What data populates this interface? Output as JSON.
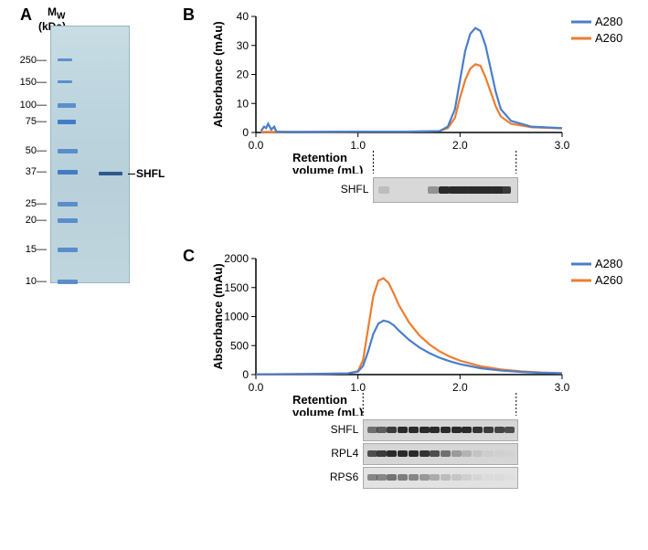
{
  "panelA": {
    "label": "A",
    "mw_header_line1": "M",
    "mw_header_sub": "W",
    "mw_header_line2": "(kDa)",
    "ticks": [
      "250",
      "150",
      "100",
      "75",
      "50",
      "37",
      "25",
      "20",
      "15",
      "10"
    ],
    "tick_positions": [
      38,
      62,
      87,
      105,
      137,
      160,
      195,
      213,
      245,
      280
    ],
    "marker_color": "#3a77c4",
    "sample_label": "SHFL",
    "sample_band_y": 162
  },
  "panelB": {
    "label": "B",
    "x_label": "Retention",
    "x_label2": "volume (mL)",
    "y_label": "Absorbance (mAu)",
    "x_ticks": [
      0.0,
      1.0,
      2.0,
      3.0
    ],
    "y_ticks": [
      0,
      10,
      20,
      30,
      40
    ],
    "ylim": [
      0,
      40
    ],
    "xlim": [
      0,
      3.0
    ],
    "legend": [
      {
        "label": "A280",
        "color": "#4a7ecb"
      },
      {
        "label": "A260",
        "color": "#ed7d31"
      }
    ],
    "series_A280": {
      "color": "#4a7ecb",
      "points": [
        [
          0.05,
          0.5
        ],
        [
          0.08,
          2
        ],
        [
          0.1,
          1.5
        ],
        [
          0.12,
          3
        ],
        [
          0.15,
          1
        ],
        [
          0.18,
          2
        ],
        [
          0.2,
          0.3
        ],
        [
          0.3,
          0.2
        ],
        [
          0.5,
          0.2
        ],
        [
          1.0,
          0.3
        ],
        [
          1.5,
          0.3
        ],
        [
          1.8,
          0.5
        ],
        [
          1.88,
          2
        ],
        [
          1.95,
          8
        ],
        [
          2.0,
          18
        ],
        [
          2.05,
          28
        ],
        [
          2.1,
          34
        ],
        [
          2.15,
          36
        ],
        [
          2.2,
          35
        ],
        [
          2.25,
          30
        ],
        [
          2.3,
          22
        ],
        [
          2.35,
          14
        ],
        [
          2.4,
          8
        ],
        [
          2.5,
          4
        ],
        [
          2.7,
          2
        ],
        [
          3.0,
          1.5
        ]
      ]
    },
    "series_A260": {
      "color": "#ed7d31",
      "points": [
        [
          0.05,
          0.2
        ],
        [
          0.5,
          0.2
        ],
        [
          1.0,
          0.3
        ],
        [
          1.5,
          0.3
        ],
        [
          1.8,
          0.5
        ],
        [
          1.88,
          1.5
        ],
        [
          1.95,
          5
        ],
        [
          2.0,
          12
        ],
        [
          2.05,
          18
        ],
        [
          2.1,
          22
        ],
        [
          2.15,
          23.5
        ],
        [
          2.2,
          23
        ],
        [
          2.25,
          19
        ],
        [
          2.3,
          14
        ],
        [
          2.35,
          9
        ],
        [
          2.4,
          5.5
        ],
        [
          2.5,
          3
        ],
        [
          2.7,
          1.8
        ],
        [
          3.0,
          1.4
        ]
      ]
    },
    "blot_label": "SHFL",
    "blot_bands_x": [
      0.07,
      0.41,
      0.49,
      0.56,
      0.62,
      0.68,
      0.74,
      0.8,
      0.86,
      0.92
    ],
    "blot_band_intensity": [
      0.15,
      0.4,
      1,
      1,
      1,
      1,
      1,
      1,
      1,
      0.9
    ]
  },
  "panelC": {
    "label": "C",
    "x_label": "Retention",
    "x_label2": "volume (mL)",
    "y_label": "Absorbance (mAu)",
    "x_ticks": [
      0.0,
      1.0,
      2.0,
      3.0
    ],
    "y_ticks": [
      0,
      500,
      1000,
      1500,
      2000
    ],
    "ylim": [
      0,
      2000
    ],
    "xlim": [
      0,
      3.0
    ],
    "legend": [
      {
        "label": "A280",
        "color": "#4a7ecb"
      },
      {
        "label": "A260",
        "color": "#ed7d31"
      }
    ],
    "series_A280": {
      "color": "#4a7ecb",
      "points": [
        [
          0.0,
          5
        ],
        [
          0.5,
          10
        ],
        [
          0.9,
          20
        ],
        [
          1.0,
          50
        ],
        [
          1.05,
          150
        ],
        [
          1.1,
          400
        ],
        [
          1.15,
          700
        ],
        [
          1.2,
          880
        ],
        [
          1.25,
          930
        ],
        [
          1.3,
          910
        ],
        [
          1.35,
          850
        ],
        [
          1.4,
          760
        ],
        [
          1.5,
          600
        ],
        [
          1.6,
          470
        ],
        [
          1.7,
          370
        ],
        [
          1.8,
          290
        ],
        [
          1.9,
          230
        ],
        [
          2.0,
          180
        ],
        [
          2.2,
          110
        ],
        [
          2.4,
          70
        ],
        [
          2.6,
          45
        ],
        [
          2.8,
          30
        ],
        [
          3.0,
          22
        ]
      ]
    },
    "series_A260": {
      "color": "#ed7d31",
      "points": [
        [
          0.0,
          5
        ],
        [
          0.5,
          10
        ],
        [
          0.9,
          20
        ],
        [
          1.0,
          60
        ],
        [
          1.05,
          250
        ],
        [
          1.1,
          800
        ],
        [
          1.15,
          1350
        ],
        [
          1.2,
          1620
        ],
        [
          1.25,
          1660
        ],
        [
          1.3,
          1580
        ],
        [
          1.35,
          1400
        ],
        [
          1.4,
          1200
        ],
        [
          1.5,
          900
        ],
        [
          1.6,
          680
        ],
        [
          1.7,
          520
        ],
        [
          1.8,
          400
        ],
        [
          1.9,
          310
        ],
        [
          2.0,
          240
        ],
        [
          2.2,
          145
        ],
        [
          2.4,
          90
        ],
        [
          2.6,
          55
        ],
        [
          2.8,
          35
        ],
        [
          3.0,
          25
        ]
      ]
    },
    "blots": [
      {
        "label": "SHFL",
        "bands_x": [
          0.02,
          0.08,
          0.15,
          0.22,
          0.29,
          0.36,
          0.43,
          0.5,
          0.57,
          0.64,
          0.71,
          0.78,
          0.85,
          0.92
        ],
        "intensity": [
          0.6,
          0.7,
          0.9,
          1,
          1,
          1,
          1,
          1,
          1,
          1,
          0.95,
          0.9,
          0.85,
          0.8
        ]
      },
      {
        "label": "RPL4",
        "bands_x": [
          0.02,
          0.08,
          0.15,
          0.22,
          0.29,
          0.36,
          0.43,
          0.5,
          0.57,
          0.64,
          0.71,
          0.78,
          0.85,
          0.92
        ],
        "intensity": [
          0.8,
          0.9,
          1,
          1,
          1,
          0.95,
          0.8,
          0.6,
          0.35,
          0.2,
          0.1,
          0.05,
          0.03,
          0.02
        ]
      },
      {
        "label": "RPS6",
        "bands_x": [
          0.02,
          0.08,
          0.15,
          0.22,
          0.29,
          0.36,
          0.43,
          0.5,
          0.57,
          0.64,
          0.71,
          0.78,
          0.85,
          0.92
        ],
        "intensity": [
          0.5,
          0.5,
          0.6,
          0.55,
          0.5,
          0.4,
          0.3,
          0.2,
          0.15,
          0.1,
          0.06,
          0.04,
          0.03,
          0.02
        ]
      }
    ]
  },
  "chart_style": {
    "line_width": 2.2,
    "axis_color": "#000000",
    "background": "#ffffff",
    "grid": false
  }
}
